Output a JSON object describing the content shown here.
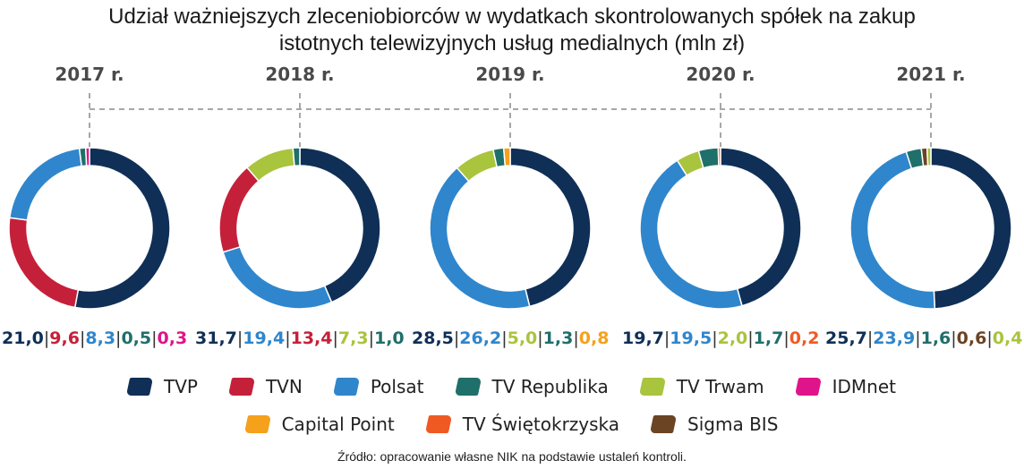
{
  "chart_data": {
    "type": "donut",
    "title_lines": [
      "Udział ważniejszych zleceniobiorców w wydatkach skontrolowanych spółek na zakup",
      "istotnych telewizyjnych usług medialnych (mln zł)"
    ],
    "categories": [
      "2017 r.",
      "2018 r.",
      "2019 r.",
      "2020 r.",
      "2021 r."
    ],
    "series": [
      {
        "key": "tvp",
        "name": "TVP",
        "color": "#0f2f56"
      },
      {
        "key": "tvn",
        "name": "TVN",
        "color": "#c5203a"
      },
      {
        "key": "polsat",
        "name": "Polsat",
        "color": "#2f86cc"
      },
      {
        "key": "republika",
        "name": "TV Republika",
        "color": "#1f6f6a"
      },
      {
        "key": "trwam",
        "name": "TV Trwam",
        "color": "#a9c43d"
      },
      {
        "key": "idmnet",
        "name": "IDMnet",
        "color": "#e0148a"
      },
      {
        "key": "capital",
        "name": "Capital Point",
        "color": "#f5a11c"
      },
      {
        "key": "swietokrzyska",
        "name": "TV Świętokrzyska",
        "color": "#ef5a23"
      },
      {
        "key": "sigma",
        "name": "Sigma BIS",
        "color": "#6b4423"
      }
    ],
    "donuts": [
      {
        "year": "2017 r.",
        "segments": [
          {
            "series": "tvp",
            "value": 21.0,
            "label": "21,0"
          },
          {
            "series": "tvn",
            "value": 9.6,
            "label": "9,6"
          },
          {
            "series": "polsat",
            "value": 8.3,
            "label": "8,3"
          },
          {
            "series": "republika",
            "value": 0.5,
            "label": "0,5"
          },
          {
            "series": "idmnet",
            "value": 0.3,
            "label": "0,3"
          }
        ]
      },
      {
        "year": "2018 r.",
        "segments": [
          {
            "series": "tvp",
            "value": 31.7,
            "label": "31,7"
          },
          {
            "series": "polsat",
            "value": 19.4,
            "label": "19,4"
          },
          {
            "series": "tvn",
            "value": 13.4,
            "label": "13,4"
          },
          {
            "series": "trwam",
            "value": 7.3,
            "label": "7,3"
          },
          {
            "series": "republika",
            "value": 1.0,
            "label": "1,0"
          }
        ]
      },
      {
        "year": "2019 r.",
        "segments": [
          {
            "series": "tvp",
            "value": 28.5,
            "label": "28,5"
          },
          {
            "series": "polsat",
            "value": 26.2,
            "label": "26,2"
          },
          {
            "series": "trwam",
            "value": 5.0,
            "label": "5,0"
          },
          {
            "series": "republika",
            "value": 1.3,
            "label": "1,3"
          },
          {
            "series": "capital",
            "value": 0.8,
            "label": "0,8"
          }
        ]
      },
      {
        "year": "2020 r.",
        "segments": [
          {
            "series": "tvp",
            "value": 19.7,
            "label": "19,7"
          },
          {
            "series": "polsat",
            "value": 19.5,
            "label": "19,5"
          },
          {
            "series": "trwam",
            "value": 2.0,
            "label": "2,0"
          },
          {
            "series": "republika",
            "value": 1.7,
            "label": "1,7"
          },
          {
            "series": "swietokrzyska",
            "value": 0.2,
            "label": "0,2"
          }
        ]
      },
      {
        "year": "2021 r.",
        "segments": [
          {
            "series": "tvp",
            "value": 25.7,
            "label": "25,7"
          },
          {
            "series": "polsat",
            "value": 23.9,
            "label": "23,9"
          },
          {
            "series": "republika",
            "value": 1.6,
            "label": "1,6"
          },
          {
            "series": "sigma",
            "value": 0.6,
            "label": "0,6"
          },
          {
            "series": "trwam",
            "value": 0.4,
            "label": "0,4"
          }
        ]
      }
    ],
    "source": "Źródło: opracowanie własne NIK na podstawie ustaleń kontroli."
  }
}
